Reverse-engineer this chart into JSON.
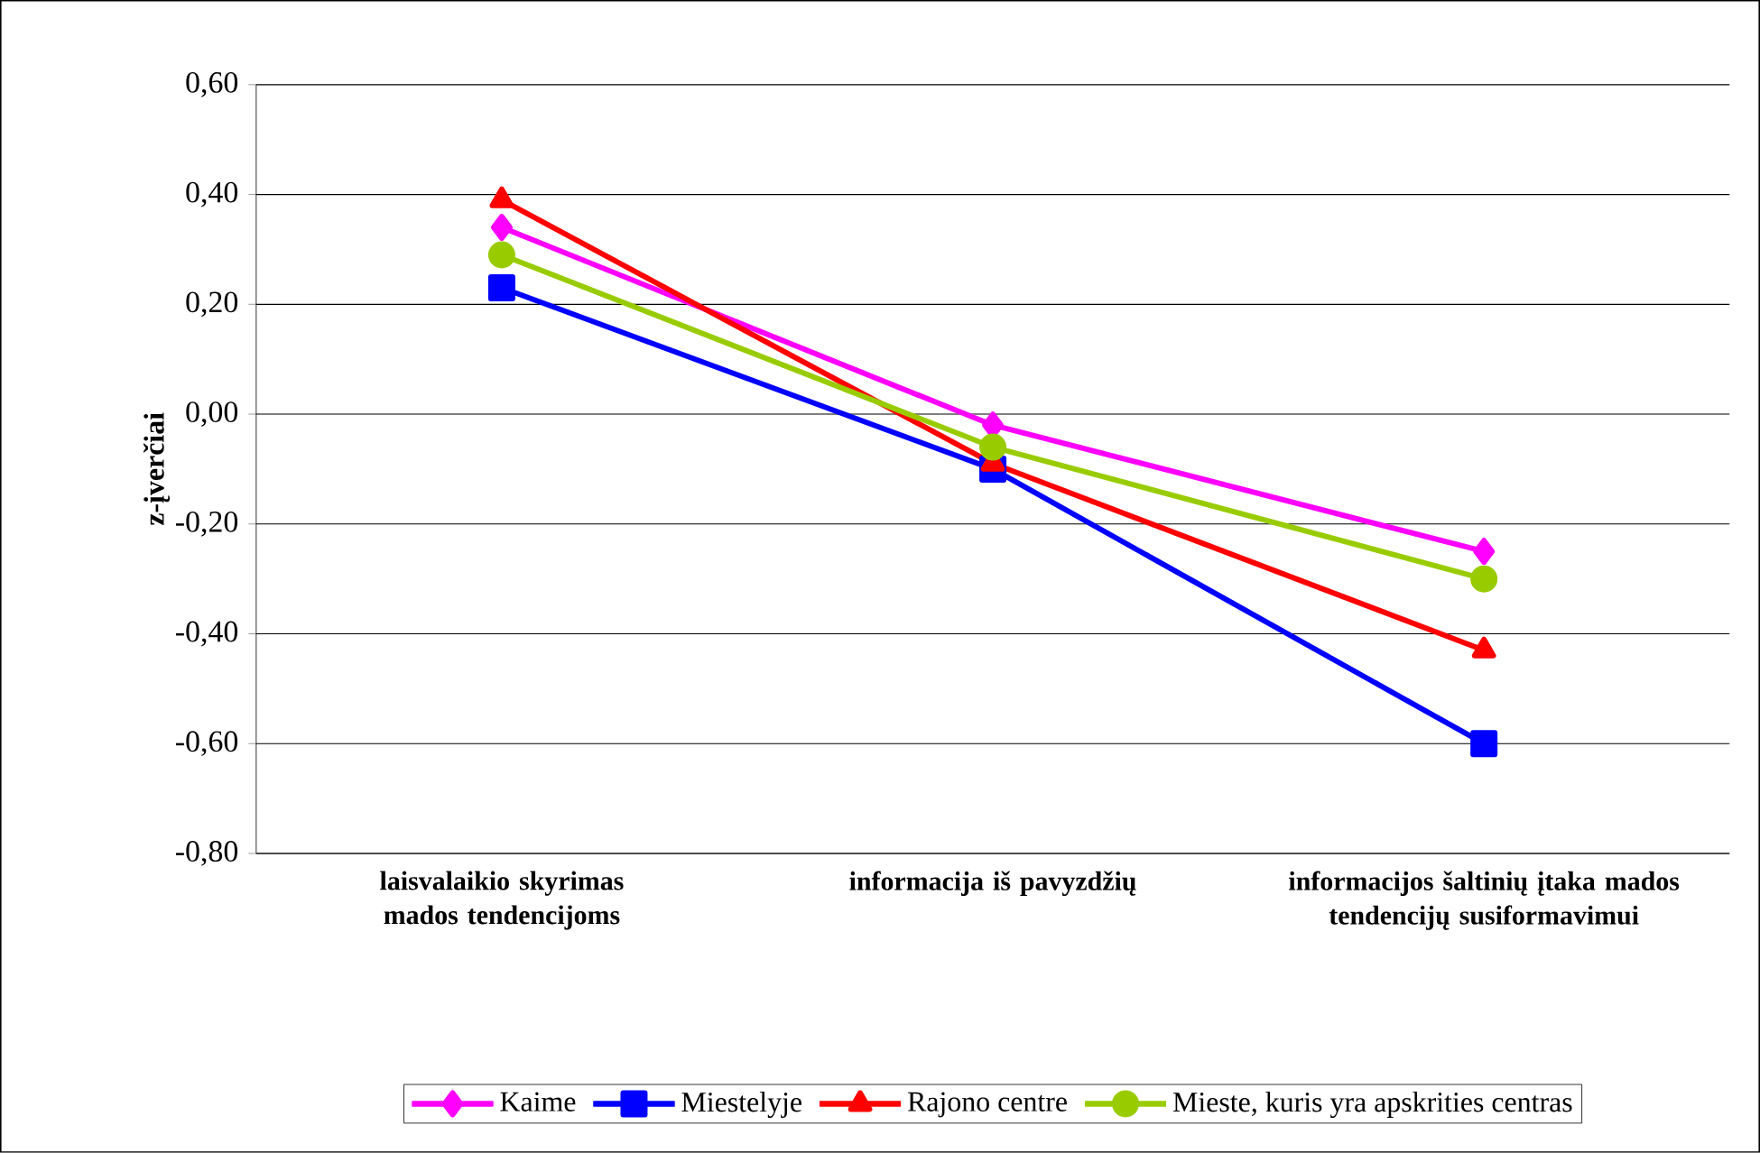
{
  "chart_data": {
    "type": "line",
    "ylabel": "z-įverčiai",
    "categories": [
      "laisvalaikio skyrimas mados tendencijoms",
      "informacija iš pavyzdžių",
      "informacijos šaltinių įtaka mados tendencijų susiformavimui"
    ],
    "series": [
      {
        "name": "Kaime",
        "color": "#ff00ff",
        "marker": "diamond",
        "values": [
          0.34,
          -0.02,
          -0.25
        ]
      },
      {
        "name": "Miestelyje",
        "color": "#0000ff",
        "marker": "square",
        "values": [
          0.23,
          -0.1,
          -0.6
        ]
      },
      {
        "name": "Rajono centre",
        "color": "#ff0000",
        "marker": "triangle",
        "values": [
          0.39,
          -0.09,
          -0.43
        ]
      },
      {
        "name": "Mieste, kuris yra apskrities centras",
        "color": "#99cc00",
        "marker": "circle",
        "values": [
          0.29,
          -0.06,
          -0.3
        ]
      }
    ],
    "ylim": [
      -0.8,
      0.6
    ],
    "yticks": [
      {
        "value": -0.8,
        "label": "-0,80"
      },
      {
        "value": -0.6,
        "label": "-0,60"
      },
      {
        "value": -0.4,
        "label": "-0,40"
      },
      {
        "value": -0.2,
        "label": "-0,20"
      },
      {
        "value": 0,
        "label": "0,00"
      },
      {
        "value": 0.2,
        "label": "0,20"
      },
      {
        "value": 0.4,
        "label": "0,40"
      },
      {
        "value": 0.6,
        "label": "0,60"
      }
    ],
    "grid": "y",
    "legend": "bottom",
    "line_style": "solid"
  }
}
